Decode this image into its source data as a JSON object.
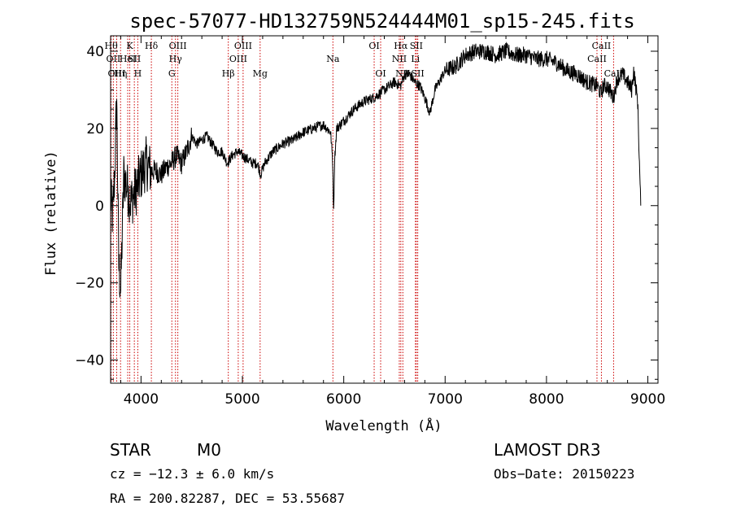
{
  "chart_data": {
    "type": "line",
    "title": "spec-57077-HD132759N524444M01_sp15-245.fits",
    "xlabel": "Wavelength (Å)",
    "ylabel": "Flux (relative)",
    "xlim": [
      3700,
      9100
    ],
    "ylim": [
      -46,
      44
    ],
    "xticks": [
      4000,
      5000,
      6000,
      7000,
      8000,
      9000
    ],
    "yticks": [
      -40,
      -20,
      0,
      20,
      40
    ],
    "ytick_labels": [
      "−40",
      "−20",
      "0",
      "20",
      "40"
    ],
    "series": [
      {
        "name": "spectrum",
        "anchors": [
          [
            3700,
            2
          ],
          [
            3720,
            -3
          ],
          [
            3740,
            8
          ],
          [
            3760,
            28
          ],
          [
            3780,
            -15
          ],
          [
            3800,
            -22
          ],
          [
            3830,
            8
          ],
          [
            3860,
            5
          ],
          [
            3900,
            1
          ],
          [
            3950,
            4
          ],
          [
            4000,
            8
          ],
          [
            4050,
            11
          ],
          [
            4100,
            9
          ],
          [
            4150,
            9
          ],
          [
            4200,
            8
          ],
          [
            4250,
            10
          ],
          [
            4300,
            11
          ],
          [
            4350,
            13
          ],
          [
            4400,
            11
          ],
          [
            4450,
            14
          ],
          [
            4500,
            18
          ],
          [
            4550,
            16
          ],
          [
            4600,
            17
          ],
          [
            4650,
            18
          ],
          [
            4700,
            16
          ],
          [
            4750,
            14
          ],
          [
            4800,
            14
          ],
          [
            4850,
            11
          ],
          [
            4900,
            13
          ],
          [
            4950,
            14
          ],
          [
            5000,
            13
          ],
          [
            5050,
            12
          ],
          [
            5100,
            11
          ],
          [
            5150,
            11
          ],
          [
            5180,
            8
          ],
          [
            5220,
            11
          ],
          [
            5300,
            14
          ],
          [
            5400,
            16
          ],
          [
            5500,
            17
          ],
          [
            5600,
            19
          ],
          [
            5700,
            20
          ],
          [
            5800,
            21
          ],
          [
            5870,
            19
          ],
          [
            5890,
            12
          ],
          [
            5900,
            -2
          ],
          [
            5910,
            12
          ],
          [
            5930,
            20
          ],
          [
            6000,
            22
          ],
          [
            6100,
            25
          ],
          [
            6200,
            27
          ],
          [
            6300,
            28
          ],
          [
            6400,
            30
          ],
          [
            6500,
            32
          ],
          [
            6560,
            31
          ],
          [
            6600,
            34
          ],
          [
            6650,
            34
          ],
          [
            6700,
            32
          ],
          [
            6750,
            31
          ],
          [
            6800,
            28
          ],
          [
            6850,
            24
          ],
          [
            6900,
            30
          ],
          [
            7000,
            35
          ],
          [
            7100,
            36
          ],
          [
            7200,
            39
          ],
          [
            7300,
            40
          ],
          [
            7400,
            40
          ],
          [
            7500,
            39
          ],
          [
            7600,
            40
          ],
          [
            7700,
            39
          ],
          [
            7800,
            39
          ],
          [
            7900,
            38
          ],
          [
            8000,
            38
          ],
          [
            8100,
            37
          ],
          [
            8200,
            35
          ],
          [
            8300,
            34
          ],
          [
            8400,
            32
          ],
          [
            8500,
            31
          ],
          [
            8540,
            29
          ],
          [
            8560,
            31
          ],
          [
            8600,
            31
          ],
          [
            8660,
            28
          ],
          [
            8700,
            33
          ],
          [
            8750,
            34
          ],
          [
            8800,
            32
          ],
          [
            8840,
            30
          ],
          [
            8860,
            35
          ],
          [
            8900,
            27
          ],
          [
            8920,
            8
          ],
          [
            8930,
            0
          ]
        ]
      }
    ],
    "spectral_lines": [
      {
        "wave": 3705,
        "label": "Hθ",
        "row": 0
      },
      {
        "wave": 3727,
        "label": "OII",
        "row": 1
      },
      {
        "wave": 3760,
        "label": "OIII",
        "row": 2
      },
      {
        "wave": 3798,
        "label": "Hη",
        "row": 2
      },
      {
        "wave": 3869,
        "label": "HeI",
        "row": 1
      },
      {
        "wave": 3889,
        "label": "K",
        "row": 0
      },
      {
        "wave": 3934,
        "label": "SII",
        "row": 1
      },
      {
        "wave": 3968,
        "label": "H",
        "row": 2
      },
      {
        "wave": 4102,
        "label": "Hδ",
        "row": 0
      },
      {
        "wave": 4304,
        "label": "G",
        "row": 2
      },
      {
        "wave": 4340,
        "label": "Hγ",
        "row": 1
      },
      {
        "wave": 4363,
        "label": "OIII",
        "row": 0
      },
      {
        "wave": 4861,
        "label": "Hβ",
        "row": 2
      },
      {
        "wave": 4959,
        "label": "OIII",
        "row": 1
      },
      {
        "wave": 5007,
        "label": "OIII",
        "row": 0
      },
      {
        "wave": 5175,
        "label": "Mg",
        "row": 2
      },
      {
        "wave": 5893,
        "label": "Na",
        "row": 1
      },
      {
        "wave": 6300,
        "label": "OI",
        "row": 0
      },
      {
        "wave": 6364,
        "label": "OI",
        "row": 2
      },
      {
        "wave": 6548,
        "label": "NII",
        "row": 1
      },
      {
        "wave": 6563,
        "label": "Hα",
        "row": 0
      },
      {
        "wave": 6583,
        "label": "NII",
        "row": 2
      },
      {
        "wave": 6707,
        "label": "Li",
        "row": 1
      },
      {
        "wave": 6716,
        "label": "SII",
        "row": 0
      },
      {
        "wave": 6730,
        "label": "SII",
        "row": 2
      },
      {
        "wave": 8498,
        "label": "CaII",
        "row": 1
      },
      {
        "wave": 8542,
        "label": "CaII",
        "row": 0
      },
      {
        "wave": 8662,
        "label": "CaII",
        "row": 2
      }
    ]
  },
  "info": {
    "class_label": "STAR",
    "subclass": "M0",
    "survey": "LAMOST DR3",
    "redshift": "cz = −12.3 ± 6.0 km/s",
    "obs_date": "Obs−Date: 20150223",
    "coords": "RA = 200.82287, DEC =  53.55687"
  },
  "colors": {
    "spectrum": "#000000",
    "line_marker": "#cc0000"
  }
}
